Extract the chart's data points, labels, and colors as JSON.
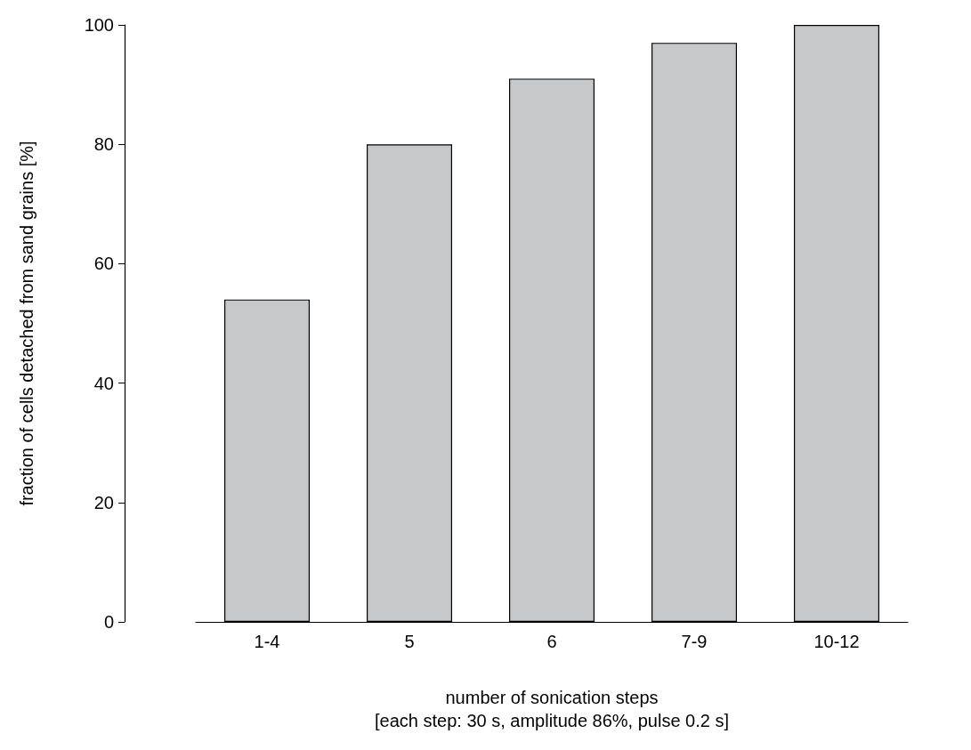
{
  "chart_data": {
    "type": "bar",
    "categories": [
      "1-4",
      "5",
      "6",
      "7-9",
      "10-12"
    ],
    "values": [
      54,
      80,
      91,
      97,
      100
    ],
    "color": "#c7c8ca",
    "xlabel": "number of sonication steps\n[each step: 30 s, amplitude 86%, pulse 0.2 s]",
    "ylabel": "fraction of cells detached from sand grains [%]",
    "ylim": [
      0,
      100
    ],
    "yticks": [
      0,
      20,
      40,
      60,
      80,
      100
    ],
    "grid": false
  }
}
